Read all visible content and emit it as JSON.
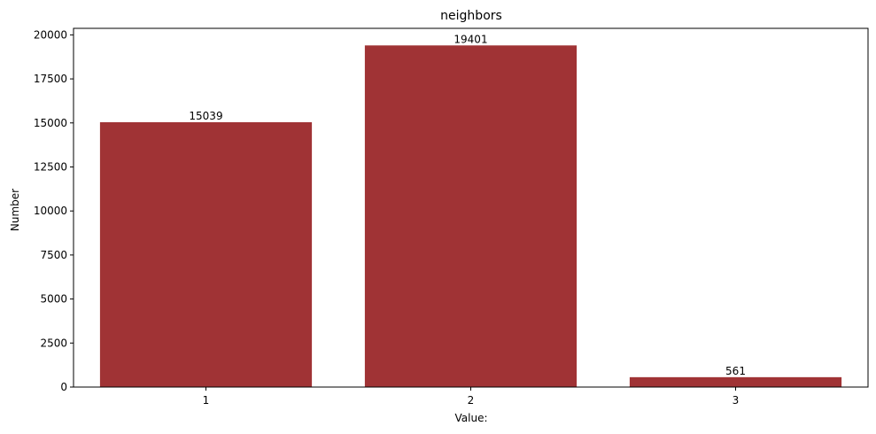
{
  "chart_data": {
    "type": "bar",
    "title": "neighbors",
    "xlabel": "Value:",
    "ylabel": "Number",
    "categories": [
      "1",
      "2",
      "3"
    ],
    "values": [
      15039,
      19401,
      561
    ],
    "data_labels": [
      "15039",
      "19401",
      "561"
    ],
    "ylim": [
      0,
      20371
    ],
    "yticks": [
      0,
      2500,
      5000,
      7500,
      10000,
      12500,
      15000,
      17500,
      20000
    ],
    "ytick_labels": [
      "0",
      "2500",
      "5000",
      "7500",
      "10000",
      "12500",
      "15000",
      "17500",
      "20000"
    ],
    "grid": false,
    "legend": "none",
    "bar_color": "#a03335"
  }
}
